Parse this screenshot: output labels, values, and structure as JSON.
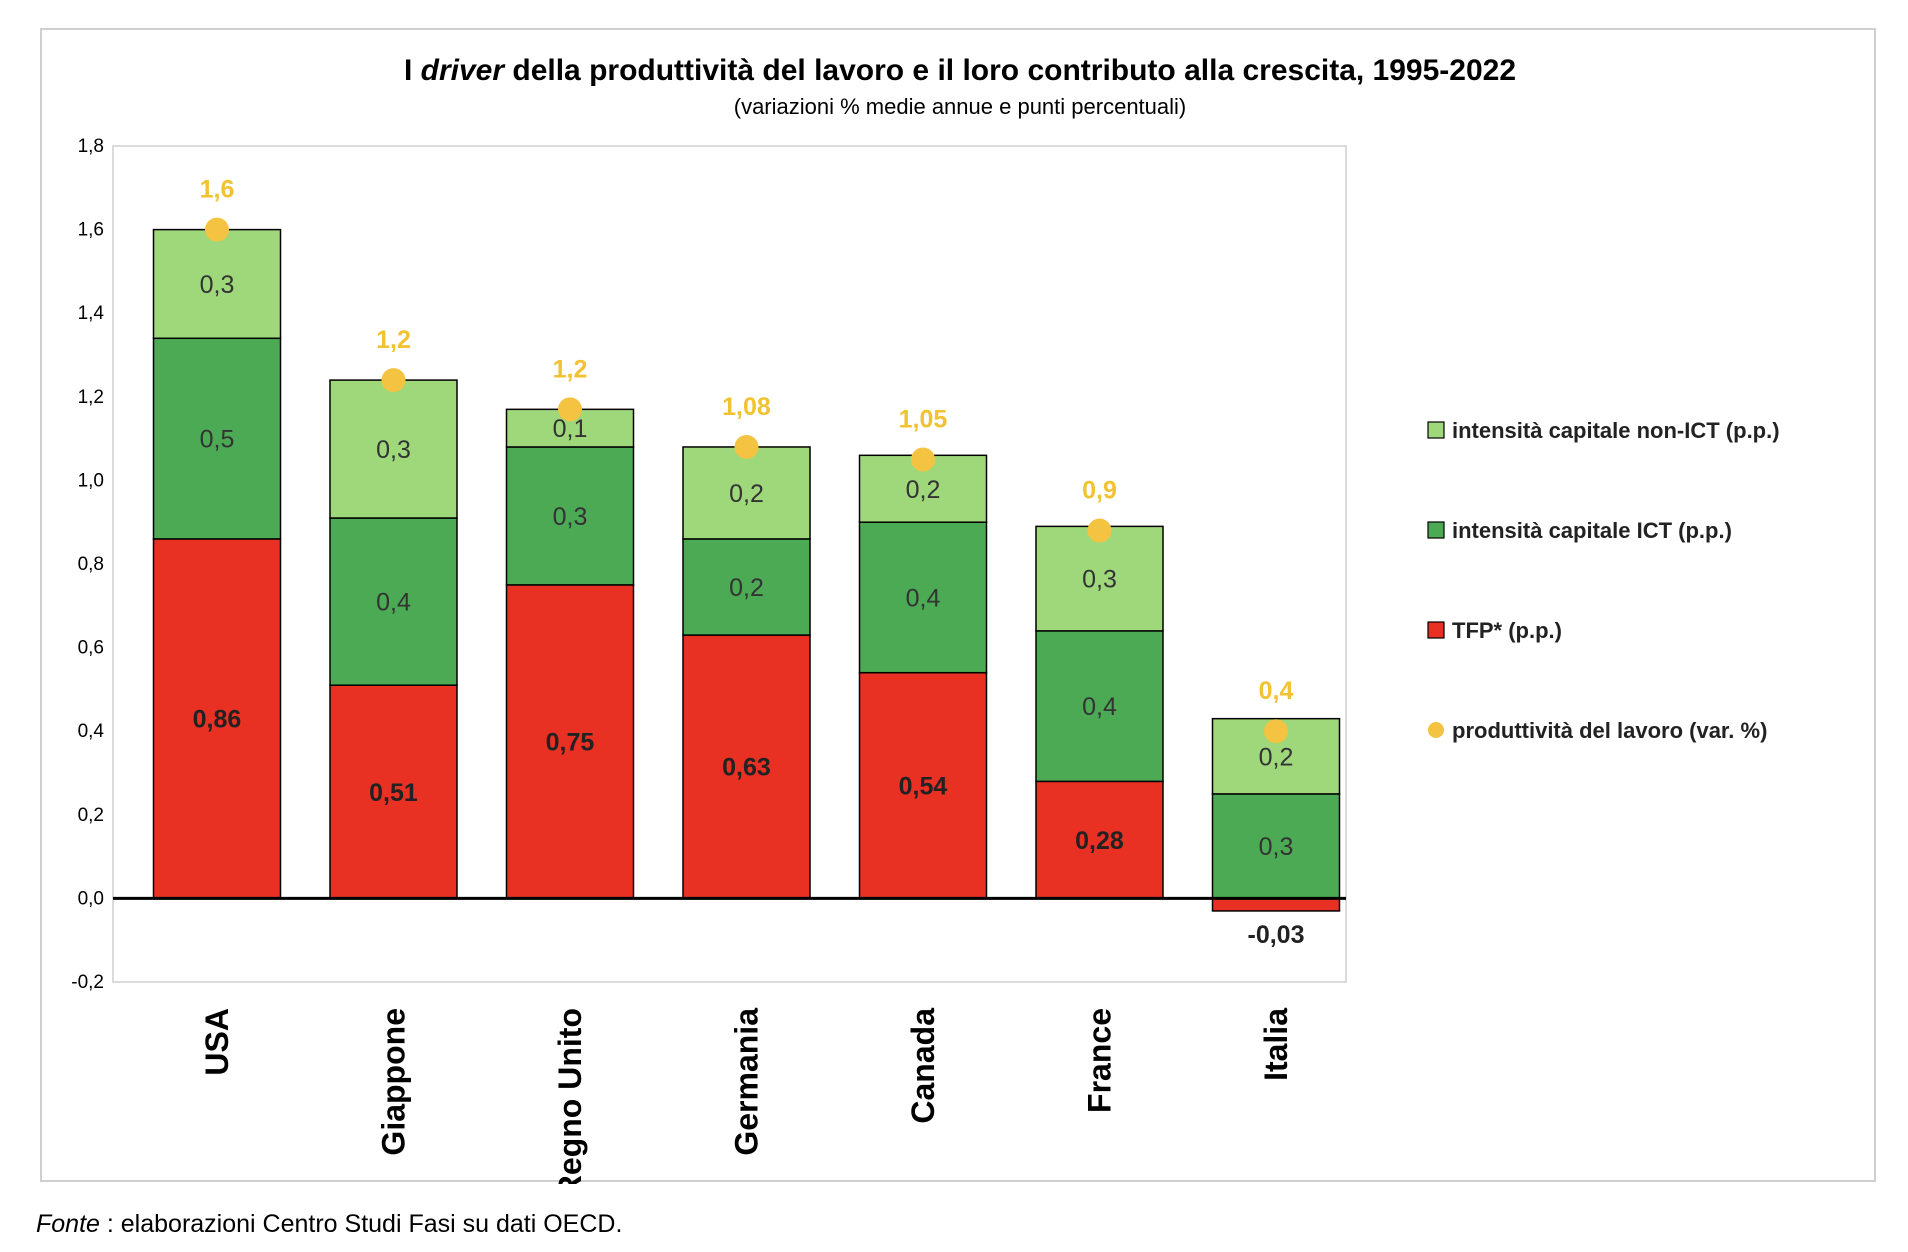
{
  "chart_data": {
    "type": "bar",
    "stacked": true,
    "title_parts": [
      "I ",
      "driver",
      " della produttività del lavoro e il loro contributo alla crescita, 1995-2022"
    ],
    "subtitle": "(variazioni % medie annue e punti percentuali)",
    "categories": [
      "USA",
      "Giappone",
      "Regno Unito",
      "Germania",
      "Canada",
      "France",
      "Italia"
    ],
    "series": [
      {
        "name": "TFP* (p.p.)",
        "color": "#e83023",
        "values": [
          0.86,
          0.51,
          0.75,
          0.63,
          0.54,
          0.28,
          -0.03
        ],
        "labels": [
          "0,86",
          "0,51",
          "0,75",
          "0,63",
          "0,54",
          "0,28",
          "-0,03"
        ]
      },
      {
        "name": "intensità capitale ICT (p.p.)",
        "color": "#4caa55",
        "values": [
          0.48,
          0.4,
          0.33,
          0.23,
          0.36,
          0.36,
          0.25
        ],
        "labels": [
          "0,5",
          "0,4",
          "0,3",
          "0,2",
          "0,4",
          "0,4",
          "0,3"
        ]
      },
      {
        "name": "intensità capitale non-ICT (p.p.)",
        "color": "#9fd77b",
        "values": [
          0.26,
          0.33,
          0.09,
          0.22,
          0.16,
          0.25,
          0.18
        ],
        "labels": [
          "0,3",
          "0,3",
          "0,1",
          "0,2",
          "0,2",
          "0,3",
          "0,2"
        ]
      }
    ],
    "markers": {
      "name": "produttività del lavoro (var. %)",
      "color": "#f5c342",
      "values": [
        1.6,
        1.24,
        1.17,
        1.08,
        1.05,
        0.88,
        0.4
      ],
      "labels": [
        "1,6",
        "1,2",
        "1,2",
        "1,08",
        "1,05",
        "0,9",
        "0,4"
      ]
    },
    "ylim": [
      -0.2,
      1.8
    ],
    "yticks": [
      -0.2,
      0.0,
      0.2,
      0.4,
      0.6,
      0.8,
      1.0,
      1.2,
      1.4,
      1.6,
      1.8
    ],
    "ytick_labels": [
      "-0,2",
      "0,0",
      "0,2",
      "0,4",
      "0,6",
      "0,8",
      "1,0",
      "1,2",
      "1,4",
      "1,6",
      "1,8"
    ],
    "legend_order": [
      "intensità capitale non-ICT (p.p.)",
      "intensità capitale ICT (p.p.)",
      "TFP* (p.p.)",
      "produttività del lavoro (var. %)"
    ],
    "legend_position": "right",
    "grid": false
  },
  "source": {
    "label": "Fonte",
    "text": " : elaborazioni Centro Studi Fasi su dati OECD."
  }
}
